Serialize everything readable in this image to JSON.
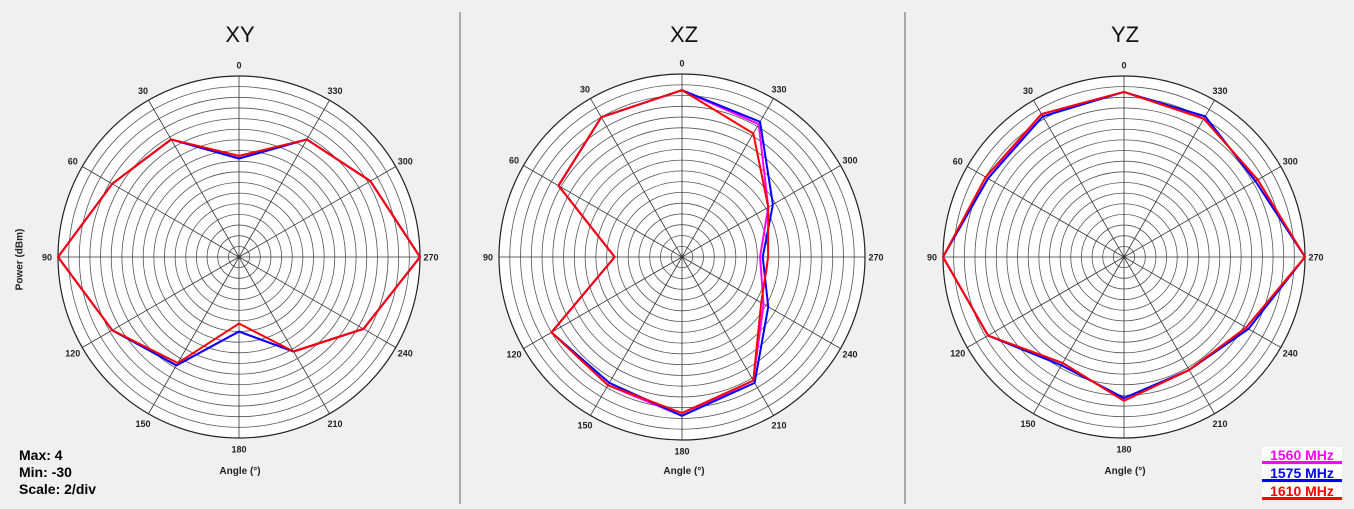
{
  "chart_data": {
    "type": "polar",
    "angle_label": "Angle (°)",
    "radial_label": "Power (dBm)",
    "radial_range": [
      -30,
      4
    ],
    "radial_step": 2,
    "angle_ticks": [
      0,
      30,
      60,
      90,
      120,
      150,
      180,
      210,
      240,
      270,
      300,
      330
    ],
    "angle_direction": "counterclockwise, 0 at top",
    "stats": {
      "max": "Max: 4",
      "min": "Min: -30",
      "scale": "Scale: 2/div"
    },
    "legend_position": "bottom-right",
    "series_meta": [
      {
        "name": "1560 MHz",
        "color": "#ff00ff"
      },
      {
        "name": "1575 MHz",
        "color": "#0000ff"
      },
      {
        "name": "1610 MHz",
        "color": "#ff0000"
      }
    ],
    "plots": [
      {
        "title": "XY",
        "angles": [
          0,
          30,
          60,
          90,
          120,
          150,
          180,
          210,
          240,
          270,
          300,
          330
        ],
        "series": [
          {
            "name": "1560 MHz",
            "values": [
              -11.5,
              -4.5,
              -2.5,
              4,
              -2.5,
              -6.5,
              -16,
              -9.5,
              -3,
              4,
              -1.5,
              -4.5
            ]
          },
          {
            "name": "1575 MHz",
            "values": [
              -11.5,
              -4.5,
              -2.5,
              4,
              -2.5,
              -6.5,
              -16,
              -9.5,
              -3,
              4,
              -1.5,
              -4.5
            ]
          },
          {
            "name": "1610 MHz",
            "values": [
              -11,
              -4.5,
              -2.5,
              4,
              -2.5,
              -7,
              -17.5,
              -9.5,
              -3,
              4,
              -1.5,
              -4.5
            ]
          }
        ]
      },
      {
        "title": "XZ",
        "angles": [
          0,
          30,
          60,
          90,
          120,
          150,
          180,
          210,
          240,
          270,
          300,
          330
        ],
        "series": [
          {
            "name": "1560 MHz",
            "values": [
              1,
              0,
              -3.5,
              -17.5,
              -2,
              -2.5,
              -0.5,
              -3.5,
              -12.5,
              -15.5,
              -11.5,
              -1.5
            ]
          },
          {
            "name": "1575 MHz",
            "values": [
              1,
              0,
              -3.5,
              -17.5,
              -2,
              -3,
              -0.5,
              -3,
              -11.5,
              -15,
              -10.5,
              -1
            ]
          },
          {
            "name": "1610 MHz",
            "values": [
              1,
              0,
              -3.5,
              -17.5,
              -2,
              -2.5,
              -1,
              -3.5,
              -13,
              -14,
              -11.5,
              -3.5
            ]
          }
        ]
      },
      {
        "title": "YZ",
        "angles": [
          0,
          30,
          60,
          90,
          120,
          150,
          180,
          210,
          240,
          270,
          300,
          330
        ],
        "series": [
          {
            "name": "1560 MHz",
            "values": [
              1,
              1,
              -0.5,
              4,
              -0.5,
              -7,
              -3,
              -5.5,
              -3.5,
              4,
              -1,
              0
            ]
          },
          {
            "name": "1575 MHz",
            "values": [
              1,
              0.5,
              -0.5,
              4,
              -0.5,
              -6.5,
              -3.5,
              -5.5,
              -3,
              4,
              -1.5,
              0.5
            ]
          },
          {
            "name": "1610 MHz",
            "values": [
              1,
              1,
              0,
              4,
              -0.5,
              -7,
              -3,
              -5.5,
              -3.5,
              4,
              -1,
              0
            ]
          }
        ]
      }
    ]
  }
}
